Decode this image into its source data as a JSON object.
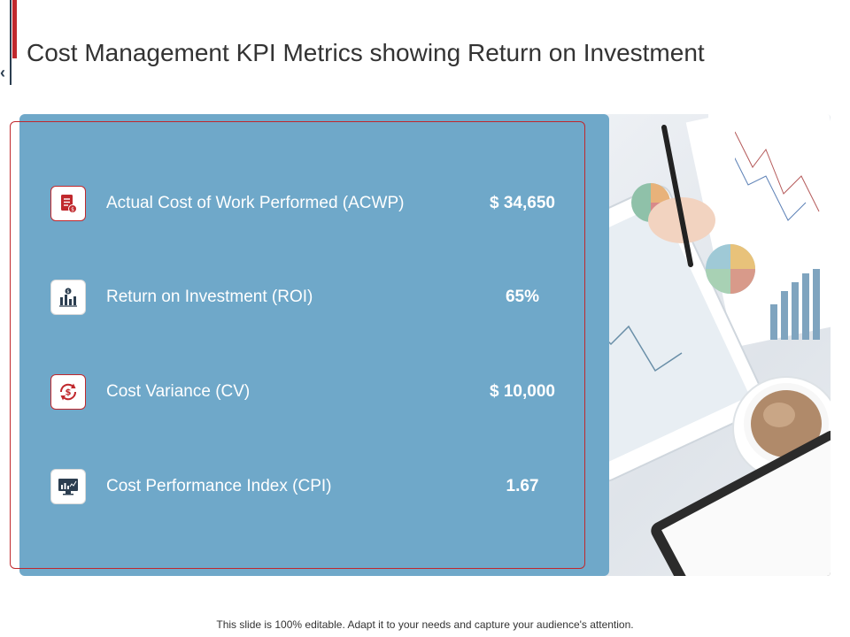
{
  "title": "Cost Management KPI Metrics showing Return on Investment",
  "nav": {
    "prev_glyph": "‹"
  },
  "kpis": [
    {
      "label": "Actual Cost of Work Performed (ACWP)",
      "value": "$ 34,650",
      "icon": "cost-document-icon"
    },
    {
      "label": "Return on Investment (ROI)",
      "value": "65%",
      "icon": "investment-chart-icon"
    },
    {
      "label": "Cost Variance (CV)",
      "value": "$ 10,000",
      "icon": "dollar-refresh-icon"
    },
    {
      "label": "Cost Performance Index (CPI)",
      "value": "1.67",
      "icon": "monitor-chart-icon"
    }
  ],
  "footer": "This slide is 100% editable. Adapt it to your needs and capture your audience's attention.",
  "colors": {
    "accent_red": "#c0282d",
    "panel_blue": "#6fa8c9",
    "navy": "#2c3e50"
  }
}
